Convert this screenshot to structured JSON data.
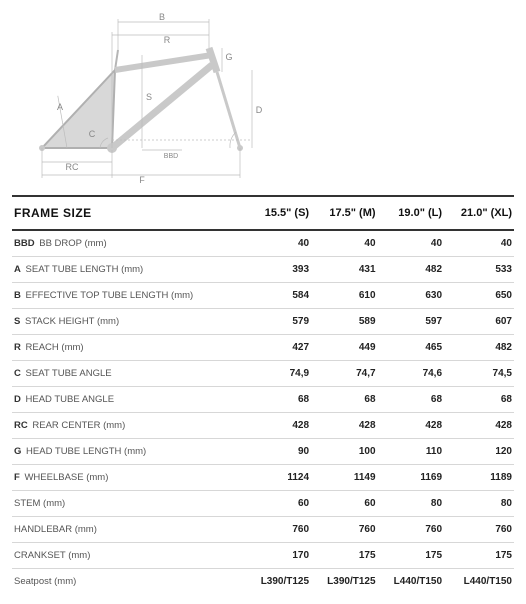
{
  "diagram": {
    "stroke_color": "#b5b5b5",
    "label_color": "#888888",
    "dim_color": "#aaaaaa",
    "labels": [
      "A",
      "B",
      "C",
      "D",
      "F",
      "G",
      "R",
      "S",
      "RC",
      "BBD"
    ]
  },
  "table": {
    "header_label": "FRAME SIZE",
    "columns": [
      "15.5\" (S)",
      "17.5\" (M)",
      "19.0\" (L)",
      "21.0\" (XL)"
    ],
    "rows": [
      {
        "code": "BBD",
        "name": "BB DROP (mm)",
        "v": [
          "40",
          "40",
          "40",
          "40"
        ]
      },
      {
        "code": "A",
        "name": "SEAT TUBE LENGTH (mm)",
        "v": [
          "393",
          "431",
          "482",
          "533"
        ]
      },
      {
        "code": "B",
        "name": "EFFECTIVE TOP TUBE LENGTH (mm)",
        "v": [
          "584",
          "610",
          "630",
          "650"
        ]
      },
      {
        "code": "S",
        "name": "STACK HEIGHT (mm)",
        "v": [
          "579",
          "589",
          "597",
          "607"
        ]
      },
      {
        "code": "R",
        "name": "REACH (mm)",
        "v": [
          "427",
          "449",
          "465",
          "482"
        ]
      },
      {
        "code": "C",
        "name": "SEAT TUBE ANGLE",
        "v": [
          "74,9",
          "74,7",
          "74,6",
          "74,5"
        ]
      },
      {
        "code": "D",
        "name": "HEAD TUBE ANGLE",
        "v": [
          "68",
          "68",
          "68",
          "68"
        ]
      },
      {
        "code": "RC",
        "name": "REAR CENTER (mm)",
        "v": [
          "428",
          "428",
          "428",
          "428"
        ]
      },
      {
        "code": "G",
        "name": "HEAD TUBE LENGTH (mm)",
        "v": [
          "90",
          "100",
          "110",
          "120"
        ]
      },
      {
        "code": "F",
        "name": "WHEELBASE (mm)",
        "v": [
          "1124",
          "1149",
          "1169",
          "1189"
        ]
      },
      {
        "code": "",
        "name": "STEM (mm)",
        "v": [
          "60",
          "60",
          "80",
          "80"
        ]
      },
      {
        "code": "",
        "name": "HANDLEBAR (mm)",
        "v": [
          "760",
          "760",
          "760",
          "760"
        ]
      },
      {
        "code": "",
        "name": "CRANKSET (mm)",
        "v": [
          "170",
          "175",
          "175",
          "175"
        ]
      },
      {
        "code": "",
        "name": "Seatpost (mm)",
        "v": [
          "L390/T125",
          "L390/T125",
          "L440/T150",
          "L440/T150"
        ]
      }
    ]
  }
}
